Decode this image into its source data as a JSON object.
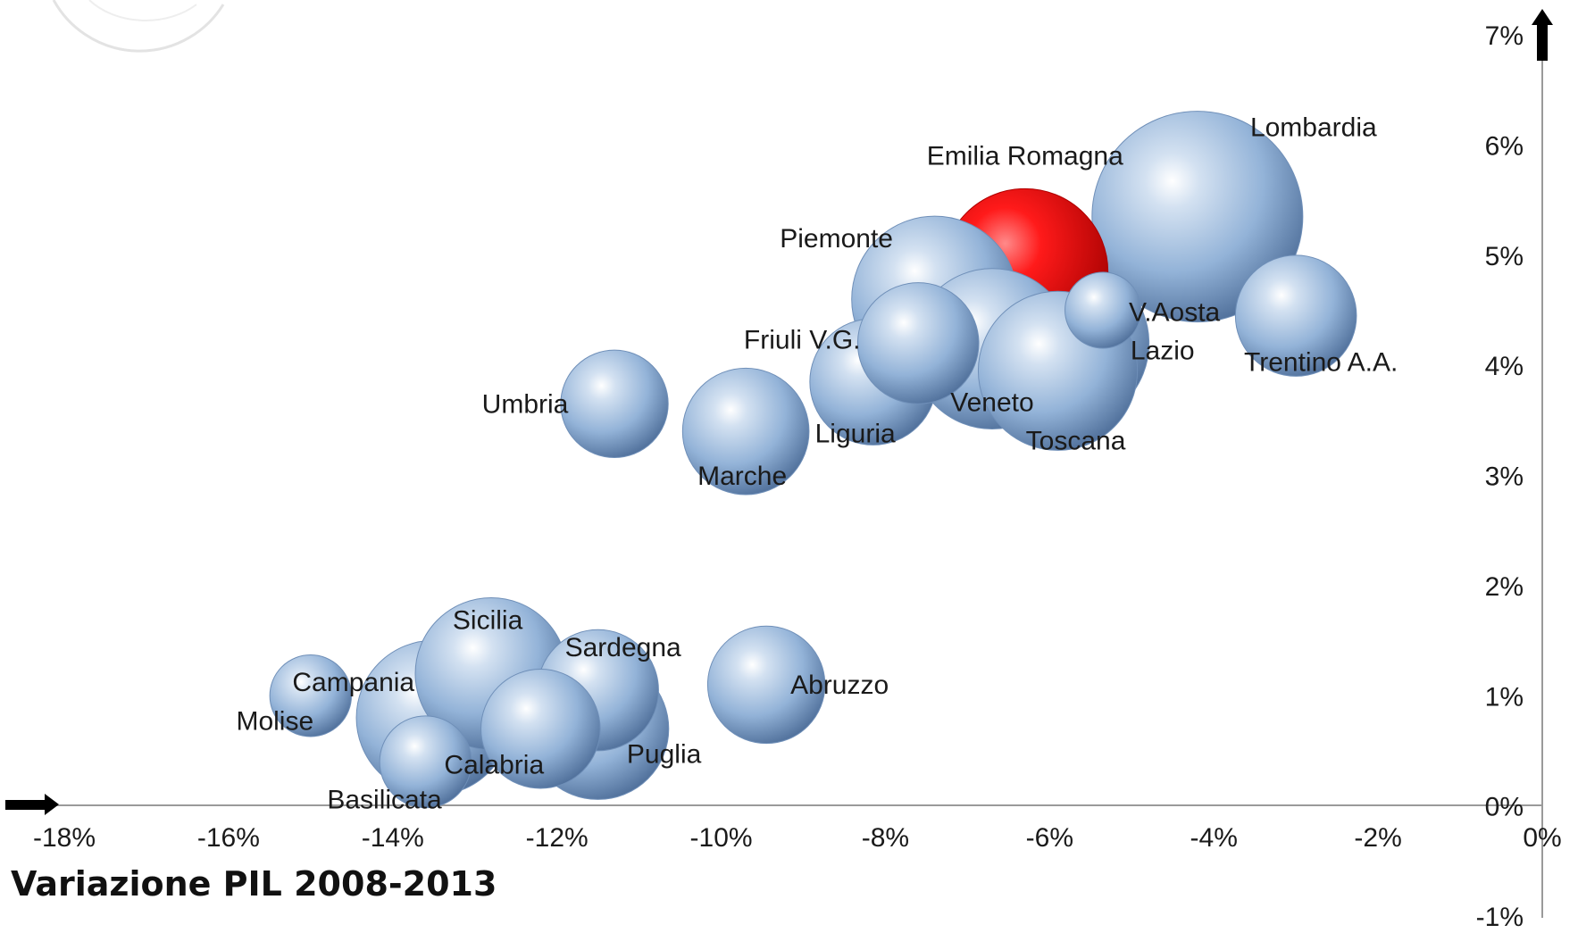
{
  "chart_data": {
    "type": "scatter",
    "xlabel": "Variazione PIL 2008-2013",
    "ylabel": "",
    "xlim": [
      -18,
      0
    ],
    "ylim": [
      -1,
      7
    ],
    "x_ticks": [
      "-18%",
      "-16%",
      "-14%",
      "-12%",
      "-10%",
      "-8%",
      "-6%",
      "-4%",
      "-2%",
      "0%"
    ],
    "y_ticks": [
      "-1%",
      "0%",
      "1%",
      "2%",
      "3%",
      "4%",
      "5%",
      "6%",
      "7%"
    ],
    "grid": false,
    "colors": {
      "default": "#8fb0d6",
      "highlight": "#e60000"
    },
    "points": [
      {
        "name": "Lombardia",
        "x": -4.2,
        "y": 5.35,
        "size": 100,
        "highlight": false
      },
      {
        "name": "Lazio",
        "x": -5.8,
        "y": 4.2,
        "size": 62,
        "highlight": false
      },
      {
        "name": "Emilia Romagna",
        "x": -6.3,
        "y": 4.85,
        "size": 62,
        "highlight": true
      },
      {
        "name": "Piemonte",
        "x": -7.4,
        "y": 4.6,
        "size": 62,
        "highlight": false
      },
      {
        "name": "Veneto",
        "x": -6.7,
        "y": 4.15,
        "size": 58,
        "highlight": false
      },
      {
        "name": "Toscana",
        "x": -5.9,
        "y": 3.95,
        "size": 57,
        "highlight": false
      },
      {
        "name": "V.Aosta",
        "x": -5.35,
        "y": 4.5,
        "size": 13,
        "highlight": false
      },
      {
        "name": "Trentino A.A.",
        "x": -3.0,
        "y": 4.45,
        "size": 33,
        "highlight": false
      },
      {
        "name": "Friuli V.G.",
        "x": -7.6,
        "y": 4.2,
        "size": 33,
        "highlight": false
      },
      {
        "name": "Liguria",
        "x": -8.15,
        "y": 3.85,
        "size": 36,
        "highlight": false
      },
      {
        "name": "Umbria",
        "x": -11.3,
        "y": 3.65,
        "size": 26,
        "highlight": false
      },
      {
        "name": "Marche",
        "x": -9.7,
        "y": 3.4,
        "size": 36,
        "highlight": false
      },
      {
        "name": "Sicilia",
        "x": -12.8,
        "y": 1.2,
        "size": 52,
        "highlight": false
      },
      {
        "name": "Campania",
        "x": -13.5,
        "y": 0.8,
        "size": 54,
        "highlight": false
      },
      {
        "name": "Puglia",
        "x": -11.5,
        "y": 0.7,
        "size": 45,
        "highlight": false
      },
      {
        "name": "Sardegna",
        "x": -11.5,
        "y": 1.05,
        "size": 33,
        "highlight": false
      },
      {
        "name": "Calabria",
        "x": -12.2,
        "y": 0.7,
        "size": 32,
        "highlight": false
      },
      {
        "name": "Abruzzo",
        "x": -9.45,
        "y": 1.1,
        "size": 31,
        "highlight": false
      },
      {
        "name": "Molise",
        "x": -15.0,
        "y": 1.0,
        "size": 15,
        "highlight": false
      },
      {
        "name": "Basilicata",
        "x": -13.6,
        "y": 0.4,
        "size": 19,
        "highlight": false
      }
    ]
  }
}
